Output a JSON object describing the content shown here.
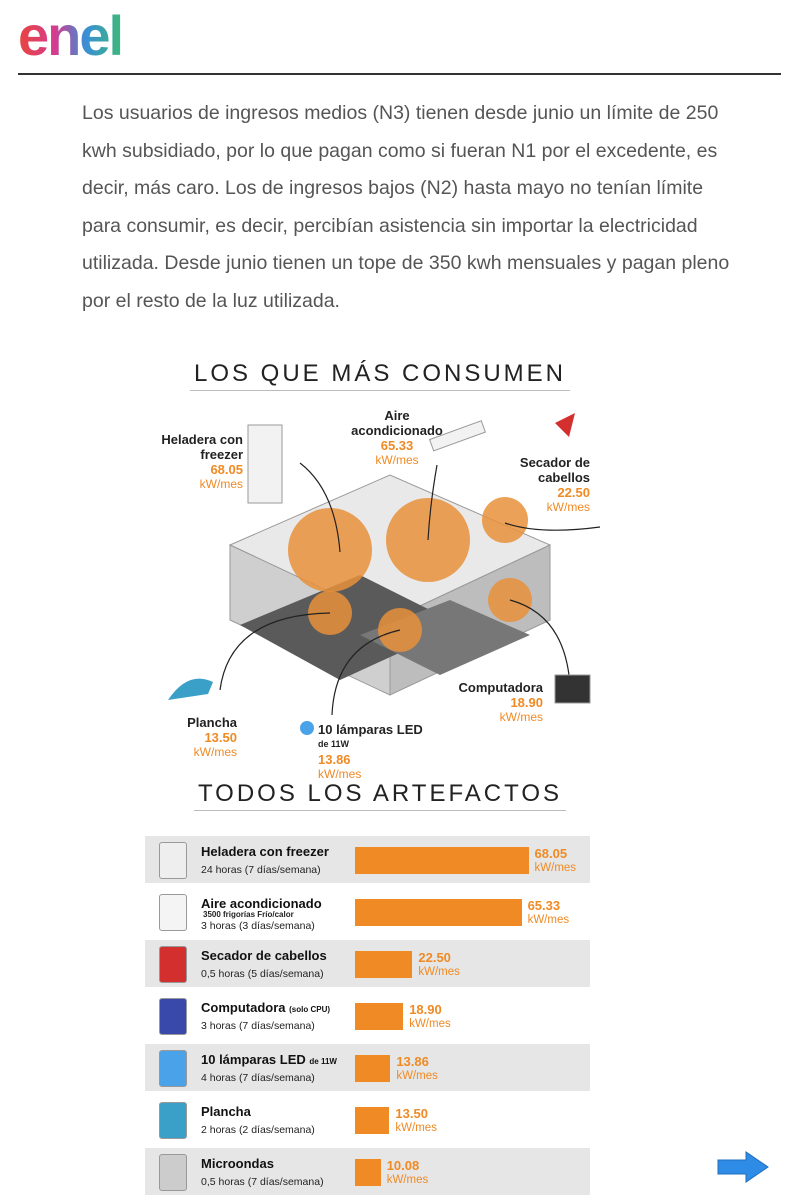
{
  "header": {
    "logo": "enel"
  },
  "article": {
    "paragraph": "Los usuarios de ingresos medios (N3) tienen desde junio un límite de 250 kwh subsidiado, por lo que pagan como si fueran N1 por el excedente, es decir, más caro. Los de ingresos bajos (N2) hasta mayo no tenían límite para consumir, es decir, percibían asistencia sin importar la electricidad utilizada. Desde junio tienen un tope de 350 kwh mensuales y pagan pleno por el resto de la luz utilizada."
  },
  "infographic": {
    "title_top": "LOS QUE MÁS CONSUMEN",
    "title_bottom": "TODOS LOS ARTEFACTOS",
    "unit": "kW/mes",
    "items": [
      {
        "name": "Heladera con freezer",
        "schedule": "24 horas (7 días/semana)",
        "value": 68.05
      },
      {
        "name": "Aire acondicionado",
        "note": "3500 frigorías Frío/calor",
        "schedule": "3 horas (3 días/semana)",
        "value": 65.33
      },
      {
        "name": "Secador de cabellos",
        "schedule": "0,5 horas (5 días/semana)",
        "value": 22.5,
        "value_label": "22.50"
      },
      {
        "name": "Computadora",
        "note": "(solo CPU)",
        "schedule": "3 horas (7 días/semana)",
        "value": 18.9,
        "value_label": "18.90"
      },
      {
        "name": "10 lámparas LED",
        "note": "de 11W",
        "schedule": "4 horas (7 días/semana)",
        "value": 13.86
      },
      {
        "name": "Plancha",
        "schedule": "2 horas (2 días/semana)",
        "value": 13.5,
        "value_label": "13.50"
      },
      {
        "name": "Microondas",
        "schedule": "0,5 horas (7 días/semana)",
        "value": 10.08
      }
    ]
  }
}
